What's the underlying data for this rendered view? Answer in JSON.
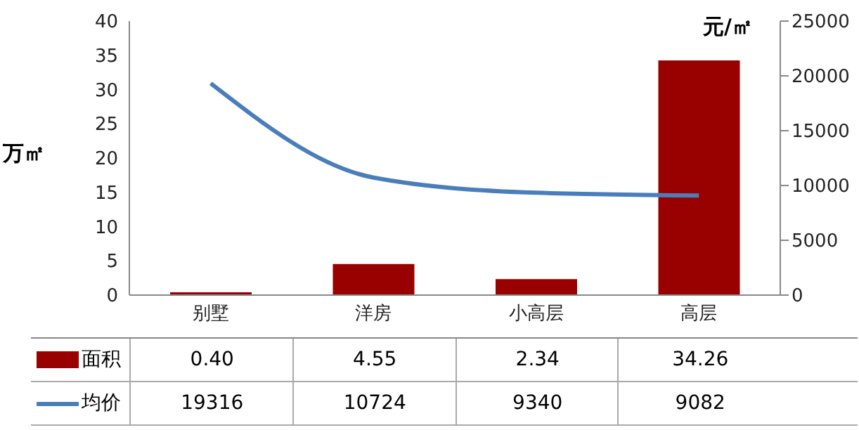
{
  "chart_data": {
    "type": "bar",
    "ylabel": "万㎡",
    "y2label": "元/㎡",
    "categories": [
      "别墅",
      "洋房",
      "小高层",
      "高层"
    ],
    "series": [
      {
        "name": "面积",
        "color": "#990000",
        "values": [
          0.4,
          4.55,
          2.34,
          34.26
        ],
        "value_labels": [
          "0.40",
          "4.55",
          "2.34",
          "34.26"
        ]
      },
      {
        "name": "均价",
        "type": "line",
        "axis": "y2",
        "color": "#4a7ebb",
        "values": [
          19316,
          10724,
          9340,
          9082
        ],
        "value_labels": [
          "19316",
          "10724",
          "9340",
          "9082"
        ]
      }
    ],
    "ylim": [
      0,
      40
    ],
    "yticks": [
      0,
      5,
      10,
      15,
      20,
      25,
      30,
      35,
      40
    ],
    "y2lim": [
      0,
      25000
    ],
    "y2ticks": [
      0,
      5000,
      10000,
      15000,
      20000,
      25000
    ],
    "legend": "bottom",
    "marker": "none"
  }
}
